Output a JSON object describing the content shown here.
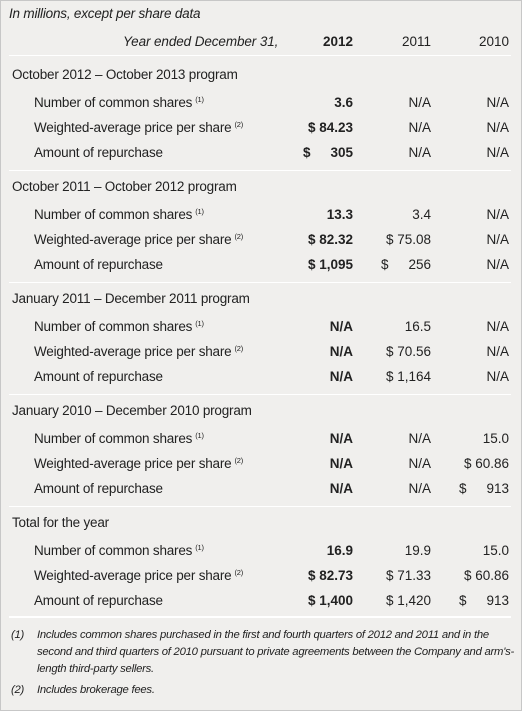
{
  "header": {
    "units_note": "In millions, except per share data",
    "year_label": "Year ended December 31,",
    "years": [
      "2012",
      "2011",
      "2010"
    ]
  },
  "sections": [
    {
      "title": "October 2012 – October 2013 program",
      "rows": [
        {
          "label": "Number of common shares",
          "note": "(1)",
          "values": [
            {
              "cur": "",
              "num": "3.6"
            },
            {
              "cur": "",
              "num": "N/A"
            },
            {
              "cur": "",
              "num": "N/A"
            }
          ]
        },
        {
          "label": "Weighted-average price per share",
          "note": "(2)",
          "values": [
            {
              "cur": "",
              "num": "$ 84.23"
            },
            {
              "cur": "",
              "num": "N/A"
            },
            {
              "cur": "",
              "num": "N/A"
            }
          ]
        },
        {
          "label": "Amount of repurchase",
          "note": "",
          "values": [
            {
              "cur": "$",
              "num": "305"
            },
            {
              "cur": "",
              "num": "N/A"
            },
            {
              "cur": "",
              "num": "N/A"
            }
          ]
        }
      ]
    },
    {
      "title": "October 2011 – October 2012 program",
      "rows": [
        {
          "label": "Number of common shares",
          "note": "(1)",
          "values": [
            {
              "cur": "",
              "num": "13.3"
            },
            {
              "cur": "",
              "num": "3.4"
            },
            {
              "cur": "",
              "num": "N/A"
            }
          ]
        },
        {
          "label": "Weighted-average price per share",
          "note": "(2)",
          "values": [
            {
              "cur": "",
              "num": "$ 82.32"
            },
            {
              "cur": "",
              "num": "$ 75.08"
            },
            {
              "cur": "",
              "num": "N/A"
            }
          ]
        },
        {
          "label": "Amount of repurchase",
          "note": "",
          "values": [
            {
              "cur": "",
              "num": "$ 1,095"
            },
            {
              "cur": "$",
              "num": "256"
            },
            {
              "cur": "",
              "num": "N/A"
            }
          ]
        }
      ]
    },
    {
      "title": "January 2011 – December 2011 program",
      "rows": [
        {
          "label": "Number of common shares",
          "note": "(1)",
          "values": [
            {
              "cur": "",
              "num": "N/A"
            },
            {
              "cur": "",
              "num": "16.5"
            },
            {
              "cur": "",
              "num": "N/A"
            }
          ]
        },
        {
          "label": "Weighted-average price per share",
          "note": "(2)",
          "values": [
            {
              "cur": "",
              "num": "N/A"
            },
            {
              "cur": "",
              "num": "$ 70.56"
            },
            {
              "cur": "",
              "num": "N/A"
            }
          ]
        },
        {
          "label": "Amount of repurchase",
          "note": "",
          "values": [
            {
              "cur": "",
              "num": "N/A"
            },
            {
              "cur": "",
              "num": "$ 1,164"
            },
            {
              "cur": "",
              "num": "N/A"
            }
          ]
        }
      ]
    },
    {
      "title": "January 2010 – December 2010 program",
      "rows": [
        {
          "label": "Number of common shares",
          "note": "(1)",
          "values": [
            {
              "cur": "",
              "num": "N/A"
            },
            {
              "cur": "",
              "num": "N/A"
            },
            {
              "cur": "",
              "num": "15.0"
            }
          ]
        },
        {
          "label": "Weighted-average price per share",
          "note": "(2)",
          "values": [
            {
              "cur": "",
              "num": "N/A"
            },
            {
              "cur": "",
              "num": "N/A"
            },
            {
              "cur": "",
              "num": "$ 60.86"
            }
          ]
        },
        {
          "label": "Amount of repurchase",
          "note": "",
          "values": [
            {
              "cur": "",
              "num": "N/A"
            },
            {
              "cur": "",
              "num": "N/A"
            },
            {
              "cur": "$",
              "num": "913"
            }
          ]
        }
      ]
    },
    {
      "title": "Total for the year",
      "rows": [
        {
          "label": "Number of common shares",
          "note": "(1)",
          "values": [
            {
              "cur": "",
              "num": "16.9"
            },
            {
              "cur": "",
              "num": "19.9"
            },
            {
              "cur": "",
              "num": "15.0"
            }
          ]
        },
        {
          "label": "Weighted-average price per share",
          "note": "(2)",
          "values": [
            {
              "cur": "",
              "num": "$ 82.73"
            },
            {
              "cur": "",
              "num": "$ 71.33"
            },
            {
              "cur": "",
              "num": "$ 60.86"
            }
          ]
        },
        {
          "label": "Amount of repurchase",
          "note": "",
          "values": [
            {
              "cur": "",
              "num": "$ 1,400"
            },
            {
              "cur": "",
              "num": "$ 1,420"
            },
            {
              "cur": "$",
              "num": "913"
            }
          ]
        }
      ]
    }
  ],
  "footnotes": [
    {
      "num": "(1)",
      "text": "Includes common shares purchased in the first and fourth quarters of 2012 and 2011 and in the second and third quarters of 2010 pursuant to private agreements between the Company and arm's-length third-party sellers."
    },
    {
      "num": "(2)",
      "text": "Includes brokerage fees."
    }
  ]
}
